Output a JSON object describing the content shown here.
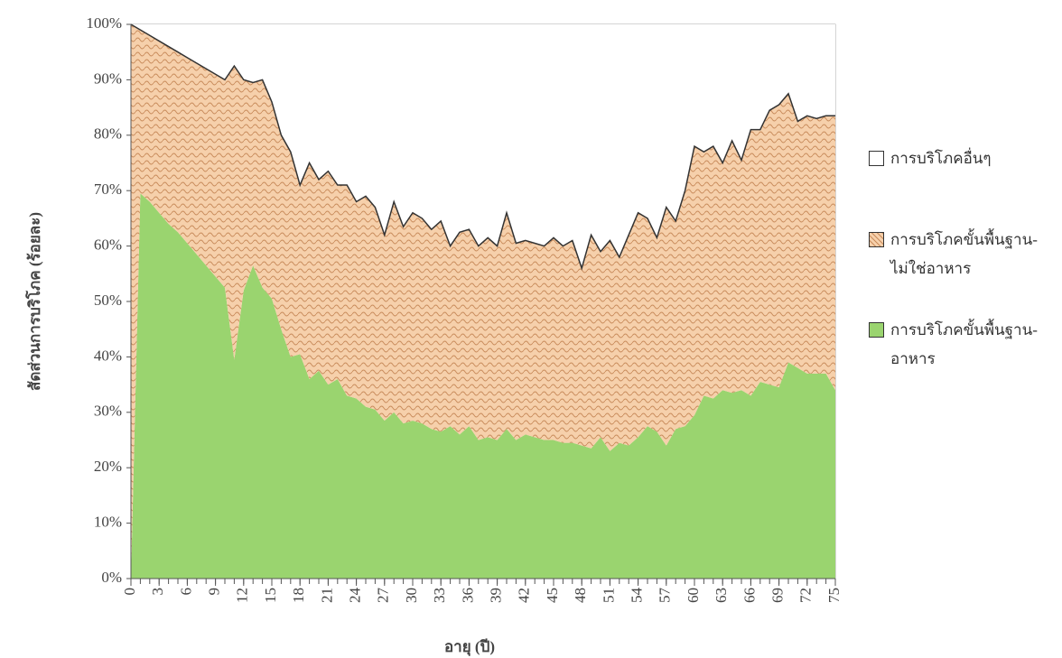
{
  "chart_data": {
    "type": "stacked-area",
    "x_label": "อายุ (ปี)",
    "y_label": "สัดส่วนการบริโภค (ร้อยละ)",
    "x": [
      0,
      1,
      2,
      3,
      4,
      5,
      6,
      7,
      8,
      9,
      10,
      11,
      12,
      13,
      14,
      15,
      16,
      17,
      18,
      19,
      20,
      21,
      22,
      23,
      24,
      25,
      26,
      27,
      28,
      29,
      30,
      31,
      32,
      33,
      34,
      35,
      36,
      37,
      38,
      39,
      40,
      41,
      42,
      43,
      44,
      45,
      46,
      47,
      48,
      49,
      50,
      51,
      52,
      53,
      54,
      55,
      56,
      57,
      58,
      59,
      60,
      61,
      62,
      63,
      64,
      65,
      66,
      67,
      68,
      69,
      70,
      71,
      72,
      73,
      74,
      75
    ],
    "xlim": [
      0,
      75
    ],
    "xticks": [
      0,
      3,
      6,
      9,
      12,
      15,
      18,
      21,
      24,
      27,
      30,
      33,
      36,
      39,
      42,
      45,
      48,
      51,
      54,
      57,
      60,
      63,
      66,
      69,
      72,
      75
    ],
    "ylim": [
      0,
      100
    ],
    "yticks": [
      {
        "value": 0,
        "label": "0%"
      },
      {
        "value": 10,
        "label": "10%"
      },
      {
        "value": 20,
        "label": "20%"
      },
      {
        "value": 30,
        "label": "30%"
      },
      {
        "value": 40,
        "label": "40%"
      },
      {
        "value": 50,
        "label": "50%"
      },
      {
        "value": 60,
        "label": "60%"
      },
      {
        "value": 70,
        "label": "70%"
      },
      {
        "value": 80,
        "label": "80%"
      },
      {
        "value": 90,
        "label": "90%"
      },
      {
        "value": 100,
        "label": "100%"
      }
    ],
    "series": [
      {
        "name": "การบริโภคขั้นพื้นฐาน-อาหาร",
        "color": "#9ad46f",
        "values": [
          0,
          69.5,
          68,
          66,
          64,
          62.5,
          60.5,
          58.5,
          56.5,
          54.5,
          52.5,
          39.5,
          52,
          56.5,
          52.5,
          50.5,
          45,
          40,
          40.5,
          36,
          37.5,
          35,
          36,
          33,
          32.5,
          31,
          30.5,
          28.5,
          30,
          28,
          28.5,
          28,
          27,
          26.5,
          27.5,
          26,
          27.5,
          25,
          25.5,
          25,
          27,
          25,
          26,
          25.5,
          25,
          25,
          24.5,
          24.5,
          24,
          23.5,
          25.5,
          23,
          24.5,
          24,
          25.5,
          27.5,
          26.5,
          24,
          27,
          27.5,
          29.5,
          33,
          32.5,
          34,
          33.5,
          34,
          33,
          35.5,
          35,
          34.5,
          39,
          38,
          37,
          37,
          37,
          34
        ]
      },
      {
        "name": "การบริโภคขั้นพื้นฐาน-ไม่ใช่อาหาร",
        "color": "#f6d0ab",
        "values": [
          100,
          29.5,
          30,
          31,
          32,
          32.5,
          33.5,
          34.5,
          35.5,
          36.5,
          37.5,
          53,
          38,
          33,
          37.5,
          35.5,
          35,
          37,
          30.5,
          39,
          34.5,
          38.5,
          35,
          38,
          35.5,
          38,
          36.5,
          33.5,
          38,
          35.5,
          37.5,
          37,
          36,
          38,
          32.5,
          36.5,
          35.5,
          35,
          36,
          35,
          39,
          35.5,
          35,
          35,
          35,
          36.5,
          35.5,
          36.5,
          32,
          38.5,
          33.5,
          38,
          33.5,
          38,
          40.5,
          37.5,
          35,
          43,
          37.5,
          42.5,
          48.5,
          44,
          45.5,
          41,
          45.5,
          41.5,
          48,
          45.5,
          49.5,
          51,
          48.5,
          44.5,
          46.5,
          46,
          46.5,
          49.5
        ]
      },
      {
        "name": "การบริโภคอื่นๆ",
        "color": "#ffffff",
        "values": [
          0,
          1,
          2,
          3,
          4,
          5,
          6,
          7,
          8,
          9,
          10,
          7.5,
          10,
          10.5,
          10,
          14,
          20,
          23,
          29,
          25,
          28,
          26.5,
          29,
          29,
          32,
          31,
          33,
          38,
          32,
          36.5,
          34,
          35,
          37,
          35.5,
          40,
          37.5,
          37,
          40,
          38.5,
          40,
          34,
          39.5,
          39,
          39.5,
          40,
          38.5,
          40,
          39,
          44,
          38,
          41,
          39,
          42,
          38,
          34,
          35,
          38.5,
          33,
          35.5,
          30,
          22,
          23,
          22,
          25,
          21,
          24.5,
          19,
          19,
          15.5,
          14.5,
          12.5,
          17.5,
          16.5,
          17,
          16.5,
          16.5
        ]
      }
    ]
  }
}
